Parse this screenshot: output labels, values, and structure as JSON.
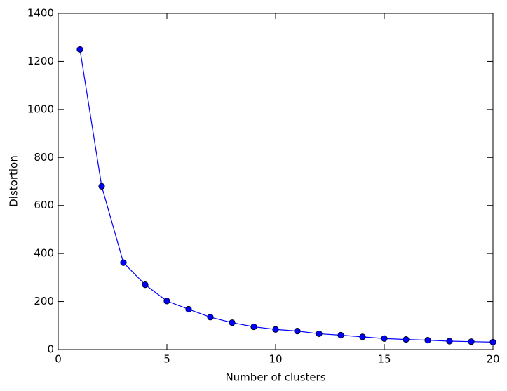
{
  "chart_data": {
    "type": "line",
    "x_label": "Number of clusters",
    "y_label": "Distortion",
    "x": [
      1,
      2,
      3,
      4,
      5,
      6,
      7,
      8,
      9,
      10,
      11,
      12,
      13,
      14,
      15,
      16,
      17,
      18,
      19,
      20
    ],
    "values": [
      1250,
      680,
      362,
      270,
      202,
      168,
      135,
      112,
      95,
      84,
      77,
      66,
      60,
      53,
      46,
      42,
      39,
      35,
      33,
      31
    ],
    "color": "#0000ff",
    "marker": "circle",
    "xlim": [
      0,
      20
    ],
    "xticks": [
      0,
      5,
      10,
      15,
      20
    ],
    "ylim": [
      0,
      1400
    ],
    "yticks": [
      0,
      200,
      400,
      600,
      800,
      1000,
      1200,
      1400
    ],
    "grid": false
  }
}
